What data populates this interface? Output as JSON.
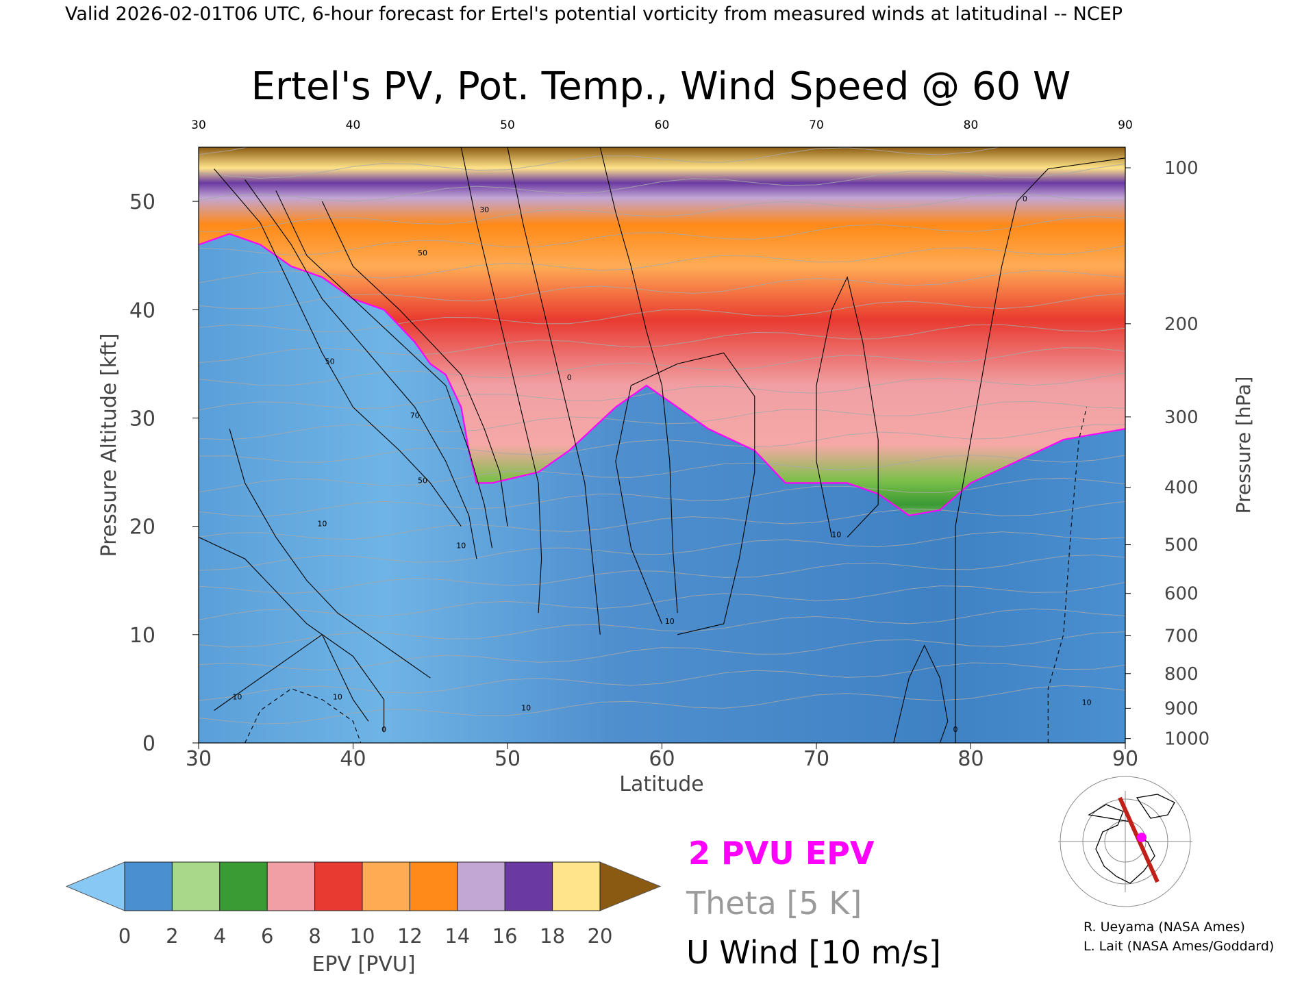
{
  "header": "Valid 2026-02-01T06 UTC, 6-hour forecast for Ertel's potential vorticity from measured winds at latitudinal -- NCEP",
  "chart_data": {
    "type": "heatmap",
    "title": "Ertel's PV, Pot. Temp., Wind Speed @ 60 W",
    "xlabel": "Latitude",
    "ylabel": "Pressure Altitude [kft]",
    "y2label": "Pressure [hPa]",
    "xlim": [
      30,
      90
    ],
    "ylim": [
      0,
      55
    ],
    "x_ticks": [
      30,
      40,
      50,
      60,
      70,
      80,
      90
    ],
    "top_ticks": [
      "30",
      "40",
      "50",
      "60",
      "70",
      "80",
      "90"
    ],
    "y_ticks": [
      0,
      10,
      20,
      30,
      40,
      50
    ],
    "pressure_ticks": [
      {
        "label": "100",
        "kft": 53.1
      },
      {
        "label": "200",
        "kft": 38.7
      },
      {
        "label": "300",
        "kft": 30.1
      },
      {
        "label": "400",
        "kft": 23.6
      },
      {
        "label": "500",
        "kft": 18.3
      },
      {
        "label": "600",
        "kft": 13.8
      },
      {
        "label": "700",
        "kft": 9.9
      },
      {
        "label": "800",
        "kft": 6.4
      },
      {
        "label": "900",
        "kft": 3.2
      },
      {
        "label": "1000",
        "kft": 0.4
      }
    ],
    "pv2_boundary": [
      [
        30,
        46
      ],
      [
        32,
        47
      ],
      [
        34,
        46
      ],
      [
        36,
        44
      ],
      [
        38,
        43
      ],
      [
        40,
        41
      ],
      [
        42,
        40
      ],
      [
        44,
        37
      ],
      [
        45,
        35
      ],
      [
        46,
        34
      ],
      [
        47,
        31
      ],
      [
        47.5,
        27
      ],
      [
        48,
        24
      ],
      [
        49,
        24
      ],
      [
        52,
        25
      ],
      [
        54,
        27
      ],
      [
        57,
        31
      ],
      [
        59,
        33
      ],
      [
        61,
        31
      ],
      [
        63,
        29
      ],
      [
        66,
        27
      ],
      [
        68,
        24
      ],
      [
        70,
        24
      ],
      [
        72,
        24
      ],
      [
        74,
        23
      ],
      [
        76,
        21
      ],
      [
        78,
        21.5
      ],
      [
        80,
        24
      ],
      [
        83,
        26
      ],
      [
        86,
        28
      ],
      [
        88,
        28.5
      ],
      [
        90,
        29
      ]
    ],
    "u_wind_labels": [
      {
        "text": "50",
        "lat": 38.5,
        "kft": 35
      },
      {
        "text": "70",
        "lat": 44,
        "kft": 30
      },
      {
        "text": "50",
        "lat": 44.5,
        "kft": 24
      },
      {
        "text": "10",
        "lat": 47,
        "kft": 18
      },
      {
        "text": "10",
        "lat": 38,
        "kft": 20
      },
      {
        "text": "10",
        "lat": 60.5,
        "kft": 11
      },
      {
        "text": "10",
        "lat": 71.3,
        "kft": 19
      },
      {
        "text": "10",
        "lat": 39,
        "kft": 4
      },
      {
        "text": "10",
        "lat": 32.5,
        "kft": 4
      },
      {
        "text": "10",
        "lat": 51.2,
        "kft": 3
      },
      {
        "text": "10",
        "lat": 87.5,
        "kft": 3.5
      },
      {
        "text": "0",
        "lat": 54,
        "kft": 33.5
      },
      {
        "text": "0",
        "lat": 83.5,
        "kft": 50
      },
      {
        "text": "0",
        "lat": 42,
        "kft": 1
      },
      {
        "text": "0",
        "lat": 79,
        "kft": 1
      },
      {
        "text": "30",
        "lat": 48.5,
        "kft": 49
      },
      {
        "text": "50",
        "lat": 44.5,
        "kft": 45
      },
      {
        "text": "10",
        "lat": 58.5,
        "kft": 55
      }
    ],
    "colorbar": {
      "label": "EPV [PVU]",
      "ticks": [
        "0",
        "2",
        "4",
        "6",
        "8",
        "10",
        "12",
        "14",
        "16",
        "18",
        "20"
      ],
      "segment_colors": [
        "#4a8fcf",
        "#a8d888",
        "#3a9a34",
        "#f0a0a4",
        "#e83a30",
        "#ffac55",
        "#ff8a18",
        "#c2a6d4",
        "#6a3aa2",
        "#ffe48a"
      ],
      "under_color": "#88c8f4",
      "over_color": "#8a5a12"
    },
    "legend": [
      "2 PVU EPV",
      "Theta [5 K]",
      "U Wind [10 m/s]"
    ],
    "legend_colors": [
      "#ff00ff",
      "#9a9a9a",
      "#000000"
    ]
  },
  "credits": [
    "R. Ueyama (NASA Ames)",
    "L. Lait (NASA Ames/Goddard)"
  ]
}
